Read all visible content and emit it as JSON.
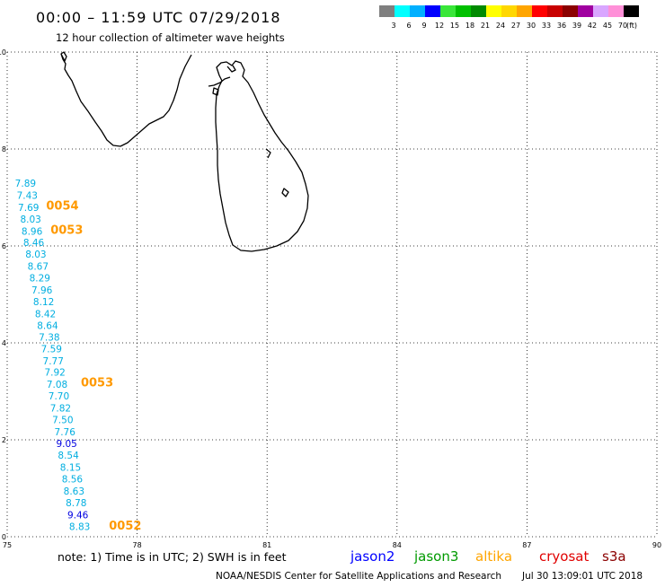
{
  "header": {
    "title": "00:00 – 11:59 UTC 07/29/2018",
    "subtitle": "12 hour collection of altimeter wave heights"
  },
  "legend": {
    "unit": "(ft)",
    "swatches": [
      {
        "color": "#7f7f7f",
        "label": "3"
      },
      {
        "color": "#00ffff",
        "label": "6"
      },
      {
        "color": "#00b0ff",
        "label": "9"
      },
      {
        "color": "#0000ff",
        "label": "12"
      },
      {
        "color": "#39e639",
        "label": "15"
      },
      {
        "color": "#00c000",
        "label": "18"
      },
      {
        "color": "#008a00",
        "label": "21"
      },
      {
        "color": "#ffff00",
        "label": "24"
      },
      {
        "color": "#ffd700",
        "label": "27"
      },
      {
        "color": "#ffa500",
        "label": "30"
      },
      {
        "color": "#ff0000",
        "label": "33"
      },
      {
        "color": "#c80000",
        "label": "36"
      },
      {
        "color": "#8b0000",
        "label": "39"
      },
      {
        "color": "#a000a0",
        "label": "42"
      },
      {
        "color": "#d9a6ff",
        "label": "45"
      },
      {
        "color": "#ff90d8",
        "label": "70"
      },
      {
        "color": "#000000",
        "label": ""
      }
    ]
  },
  "map": {
    "lon_range": [
      75,
      90
    ],
    "lat_range": [
      0,
      10
    ],
    "x_ticks": [
      "75",
      "78",
      "81",
      "84",
      "87",
      "90"
    ],
    "y_ticks": [
      "0",
      "2",
      "4",
      "6",
      "8",
      "10"
    ]
  },
  "observations": [
    {
      "value": "7.89",
      "lon": 75.18,
      "lat": 7.22,
      "color": "#00aee0"
    },
    {
      "value": "7.43",
      "lon": 75.22,
      "lat": 6.97,
      "color": "#00aee0"
    },
    {
      "value": "7.69",
      "lon": 75.25,
      "lat": 6.72,
      "color": "#00aee0"
    },
    {
      "value": "8.03",
      "lon": 75.3,
      "lat": 6.48,
      "color": "#00aee0"
    },
    {
      "value": "8.96",
      "lon": 75.33,
      "lat": 6.23,
      "color": "#00aee0"
    },
    {
      "value": "8.46",
      "lon": 75.37,
      "lat": 6.0,
      "color": "#00aee0"
    },
    {
      "value": "8.03",
      "lon": 75.42,
      "lat": 5.76,
      "color": "#00aee0"
    },
    {
      "value": "8.67",
      "lon": 75.47,
      "lat": 5.51,
      "color": "#00aee0"
    },
    {
      "value": "8.29",
      "lon": 75.51,
      "lat": 5.27,
      "color": "#00aee0"
    },
    {
      "value": "7.96",
      "lon": 75.56,
      "lat": 5.02,
      "color": "#00aee0"
    },
    {
      "value": "8.12",
      "lon": 75.6,
      "lat": 4.78,
      "color": "#00aee0"
    },
    {
      "value": "8.42",
      "lon": 75.64,
      "lat": 4.53,
      "color": "#00aee0"
    },
    {
      "value": "8.64",
      "lon": 75.69,
      "lat": 4.29,
      "color": "#00aee0"
    },
    {
      "value": "7.38",
      "lon": 75.73,
      "lat": 4.05,
      "color": "#00aee0"
    },
    {
      "value": "7.59",
      "lon": 75.78,
      "lat": 3.81,
      "color": "#00aee0"
    },
    {
      "value": "7.77",
      "lon": 75.82,
      "lat": 3.56,
      "color": "#00aee0"
    },
    {
      "value": "7.92",
      "lon": 75.86,
      "lat": 3.32,
      "color": "#00aee0"
    },
    {
      "value": "7.08",
      "lon": 75.91,
      "lat": 3.07,
      "color": "#00aee0"
    },
    {
      "value": "7.70",
      "lon": 75.95,
      "lat": 2.83,
      "color": "#00aee0"
    },
    {
      "value": "7.82",
      "lon": 75.99,
      "lat": 2.58,
      "color": "#00aee0"
    },
    {
      "value": "7.50",
      "lon": 76.04,
      "lat": 2.34,
      "color": "#00aee0"
    },
    {
      "value": "7.76",
      "lon": 76.09,
      "lat": 2.09,
      "color": "#00aee0"
    },
    {
      "value": "9.05",
      "lon": 76.13,
      "lat": 1.85,
      "color": "#0000e0"
    },
    {
      "value": "8.54",
      "lon": 76.17,
      "lat": 1.61,
      "color": "#00aee0"
    },
    {
      "value": "8.15",
      "lon": 76.22,
      "lat": 1.36,
      "color": "#00aee0"
    },
    {
      "value": "8.56",
      "lon": 76.26,
      "lat": 1.12,
      "color": "#00aee0"
    },
    {
      "value": "8.63",
      "lon": 76.3,
      "lat": 0.87,
      "color": "#00aee0"
    },
    {
      "value": "8.78",
      "lon": 76.35,
      "lat": 0.63,
      "color": "#00aee0"
    },
    {
      "value": "9.46",
      "lon": 76.39,
      "lat": 0.38,
      "color": "#0000e0"
    },
    {
      "value": "8.83",
      "lon": 76.43,
      "lat": 0.14,
      "color": "#00aee0"
    }
  ],
  "pass_times": [
    {
      "value": "0054",
      "lon": 75.9,
      "lat": 6.75,
      "color": "#ff9900"
    },
    {
      "value": "0053",
      "lon": 76.0,
      "lat": 6.25,
      "color": "#ff9900"
    },
    {
      "value": "0053",
      "lon": 76.7,
      "lat": 3.1,
      "color": "#ff9900"
    },
    {
      "value": "0052",
      "lon": 77.35,
      "lat": 0.15,
      "color": "#ff9900"
    }
  ],
  "footer": {
    "note": "note:  1) Time is in UTC;  2) SWH is in feet",
    "satellites": [
      {
        "name": "jason2",
        "color": "#0000ff"
      },
      {
        "name": "jason3",
        "color": "#009a00"
      },
      {
        "name": "altika",
        "color": "#ffa500"
      },
      {
        "name": "cryosat",
        "color": "#e00000"
      },
      {
        "name": "s3a",
        "color": "#8b0000"
      }
    ],
    "credit": "NOAA/NESDIS Center for Satellite Applications and Research",
    "generated": "Jul 30 13:09:01 UTC 2018"
  }
}
